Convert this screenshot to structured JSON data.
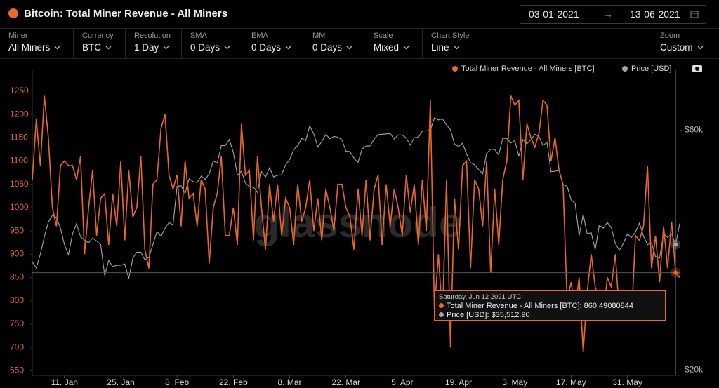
{
  "header": {
    "title": "Bitcoin: Total Miner Revenue - All Miners",
    "date_from": "03-01-2021",
    "date_to": "13-06-2021"
  },
  "toolbar": [
    {
      "label": "Miner",
      "value": "All Miners"
    },
    {
      "label": "Currency",
      "value": "BTC"
    },
    {
      "label": "Resolution",
      "value": "1 Day"
    },
    {
      "label": "SMA",
      "value": "0 Days"
    },
    {
      "label": "EMA",
      "value": "0 Days"
    },
    {
      "label": "MM",
      "value": "0 Days"
    },
    {
      "label": "Scale",
      "value": "Mixed"
    },
    {
      "label": "Chart Style",
      "value": "Line"
    },
    {
      "label": "Zoom",
      "value": "Custom"
    }
  ],
  "watermark": "glassnode",
  "tooltip": {
    "date": "Saturday, Jun 12 2021 UTC",
    "lines": [
      "Total Miner Revenue - All Miners [BTC]: 860.49080844",
      "Price [USD]: $35,512.90"
    ]
  },
  "chart_data": {
    "type": "line",
    "legend": "top-right",
    "x": [
      3,
      4,
      5,
      6,
      7,
      8,
      9,
      10,
      11,
      12,
      13,
      14,
      15,
      16,
      17,
      18,
      19,
      20,
      21,
      22,
      23,
      24,
      25,
      26,
      27,
      28,
      29,
      30,
      31,
      32,
      33,
      34,
      35,
      36,
      37,
      38,
      39,
      40,
      41,
      42,
      43,
      44,
      45,
      46,
      47,
      48,
      49,
      50,
      51,
      52,
      53,
      54,
      55,
      56,
      57,
      58,
      59,
      60,
      61,
      62,
      63,
      64,
      65,
      66,
      67,
      68,
      69,
      70,
      71,
      72,
      73,
      74,
      75,
      76,
      77,
      78,
      79,
      80,
      81,
      82,
      83,
      84,
      85,
      86,
      87,
      88,
      89,
      90,
      91,
      92,
      93,
      94,
      95,
      96,
      97,
      98,
      99,
      100,
      101,
      102,
      103,
      104,
      105,
      106,
      107,
      108,
      109,
      110,
      111,
      112,
      113,
      114,
      115,
      116,
      117,
      118,
      119,
      120,
      121,
      122,
      123,
      124,
      125,
      126,
      127,
      128,
      129,
      130,
      131,
      132,
      133,
      134,
      135,
      136,
      137,
      138,
      139,
      140,
      141,
      142,
      143,
      144,
      145,
      146,
      147,
      148,
      149,
      150,
      151,
      152,
      153,
      154,
      155,
      156,
      157,
      158,
      159,
      160,
      161,
      162,
      163,
      164
    ],
    "xlim": [
      3,
      164
    ],
    "xticks": [
      {
        "value": 11,
        "label": "11. Jan"
      },
      {
        "value": 25,
        "label": "25. Jan"
      },
      {
        "value": 39,
        "label": "8. Feb"
      },
      {
        "value": 53,
        "label": "22. Feb"
      },
      {
        "value": 67,
        "label": "8. Mar"
      },
      {
        "value": 81,
        "label": "22. Mar"
      },
      {
        "value": 95,
        "label": "5. Apr"
      },
      {
        "value": 109,
        "label": "19. Apr"
      },
      {
        "value": 123,
        "label": "3. May"
      },
      {
        "value": 137,
        "label": "17. May"
      },
      {
        "value": 151,
        "label": "31. May"
      }
    ],
    "ylim": [
      640,
      1295
    ],
    "yticks": [
      650,
      700,
      750,
      800,
      850,
      900,
      950,
      1000,
      1050,
      1100,
      1150,
      1200,
      1250
    ],
    "y2lim": [
      19500,
      79000
    ],
    "y2log": true,
    "y2ticks": [
      {
        "value": 20000,
        "label": "$20k"
      },
      {
        "value": 60000,
        "label": "$60k"
      }
    ],
    "highlight_index": 160,
    "series": [
      {
        "name": "Total Miner Revenue - All Miners [BTC]",
        "color": "#e8692d",
        "values": [
          1060,
          1190,
          1090,
          1240,
          1150,
          1000,
          960,
          1090,
          1100,
          1090,
          1090,
          1060,
          1110,
          900,
          1000,
          1080,
          940,
          1020,
          1030,
          920,
          1030,
          960,
          1100,
          930,
          1080,
          980,
          1000,
          1110,
          910,
          870,
          1050,
          1060,
          1170,
          1200,
          1070,
          1040,
          1070,
          960,
          1100,
          1020,
          1030,
          960,
          1060,
          1040,
          880,
          1000,
          1030,
          1110,
          940,
          940,
          1000,
          920,
          1180,
          1070,
          1080,
          930,
          1110,
          1000,
          910,
          1050,
          970,
          1050,
          940,
          1020,
          1000,
          920,
          1050,
          970,
          1000,
          1060,
          950,
          1020,
          930,
          1040,
          1000,
          950,
          1050,
          1050,
          1000,
          980,
          910,
          1040,
          940,
          1060,
          930,
          1040,
          1070,
          920,
          1050,
          960,
          1040,
          1000,
          940,
          1070,
          990,
          1050,
          920,
          1060,
          950,
          1230,
          780,
          900,
          760,
          1060,
          700,
          1020,
          910,
          1090,
          1100,
          870,
          1060,
          1040,
          960,
          1100,
          860,
          1040,
          920,
          1060,
          1100,
          1240,
          1220,
          1230,
          1060,
          1180,
          1150,
          1130,
          1160,
          1230,
          1220,
          1100,
          1150,
          1080,
          1050,
          800,
          840,
          780,
          850,
          690,
          820,
          900,
          830,
          800,
          760,
          850,
          830,
          900,
          770,
          770,
          820,
          760,
          940,
          930,
          960,
          1090,
          870,
          940,
          840,
          960,
          870,
          970,
          860.49080844,
          850
        ]
      },
      {
        "name": "Price [USD]",
        "color": "#a6a6a6",
        "axis": "y2",
        "values": [
          32800,
          31900,
          34000,
          36800,
          39400,
          40600,
          40200,
          38300,
          35500,
          33900,
          37300,
          39100,
          36800,
          36200,
          35800,
          36600,
          36100,
          35500,
          30800,
          33000,
          32100,
          32300,
          32300,
          32500,
          30400,
          33400,
          34300,
          34300,
          33100,
          33500,
          35500,
          37700,
          36900,
          38300,
          39300,
          38900,
          46400,
          46500,
          44900,
          48000,
          47400,
          47200,
          48600,
          47900,
          49100,
          52100,
          51600,
          55900,
          55900,
          57500,
          54200,
          48800,
          49700,
          47100,
          46300,
          46200,
          45100,
          49600,
          48400,
          50500,
          48400,
          48800,
          48900,
          51200,
          52400,
          54900,
          55900,
          57800,
          57200,
          61200,
          59000,
          55600,
          56900,
          58900,
          57700,
          58300,
          58100,
          57400,
          54500,
          54400,
          52800,
          51700,
          55000,
          55800,
          55800,
          57600,
          58800,
          58900,
          59000,
          59100,
          57600,
          58700,
          58700,
          57900,
          56000,
          58000,
          58100,
          59800,
          59800,
          60000,
          63500,
          62900,
          63200,
          61500,
          60100,
          56300,
          55700,
          56500,
          53800,
          51700,
          51200,
          50100,
          49100,
          54000,
          55000,
          54900,
          53600,
          57800,
          57800,
          56600,
          57200,
          53200,
          57500,
          56400,
          57400,
          58900,
          58300,
          55900,
          56800,
          49600,
          49700,
          49900,
          46800,
          46400,
          43600,
          42900,
          37000,
          40800,
          37300,
          37500,
          34700,
          38800,
          38300,
          39300,
          38400,
          35700,
          34600,
          35700,
          37300,
          36700,
          37600,
          39200,
          36900,
          35500,
          35800,
          33600,
          33400,
          37400,
          36700,
          37300,
          35512.9,
          39100
        ]
      }
    ]
  }
}
